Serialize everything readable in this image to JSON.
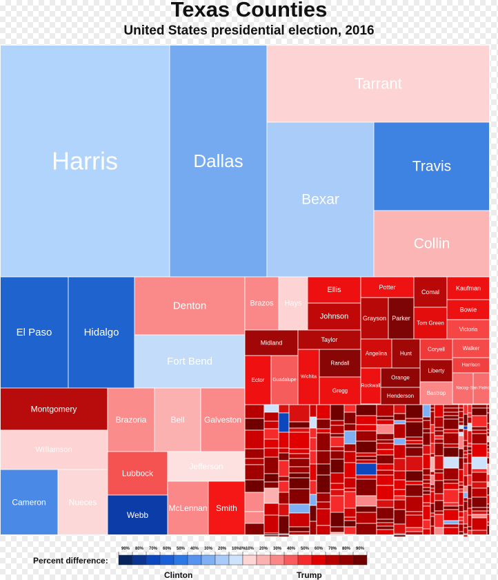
{
  "chart_data": {
    "type": "treemap",
    "title": "Texas Counties",
    "subtitle": "United States presidential election, 2016",
    "legend": {
      "label": "Percent difference:",
      "left_name": "Clinton",
      "right_name": "Trump",
      "ticks_left": [
        "90%",
        "80%",
        "70%",
        "60%",
        "50%",
        "40%",
        "30%",
        "20%",
        "10%"
      ],
      "center_tick": "0%",
      "ticks_right": [
        "10%",
        "20%",
        "30%",
        "40%",
        "50%",
        "60%",
        "70%",
        "80%",
        "90%"
      ],
      "colors_left": [
        "#08245e",
        "#0b3590",
        "#0d47bd",
        "#1a5fd6",
        "#2e78e6",
        "#5593ee",
        "#7fb0f4",
        "#a9cbf8",
        "#cfe2fc"
      ],
      "colors_right": [
        "#fdd5d5",
        "#fcb1b1",
        "#fa8888",
        "#f85c5c",
        "#f52a2a",
        "#e00000",
        "#b70000",
        "#920000",
        "#700000"
      ]
    },
    "counties": [
      {
        "name": "Harris",
        "winner": "Clinton",
        "margin": 12,
        "color": "#b0d4fb"
      },
      {
        "name": "Dallas",
        "winner": "Clinton",
        "margin": 34,
        "color": "#76aaf0"
      },
      {
        "name": "Tarrant",
        "winner": "Trump",
        "margin": 9,
        "color": "#fdd3d3"
      },
      {
        "name": "Bexar",
        "winner": "Clinton",
        "margin": 13,
        "color": "#a9ccf8"
      },
      {
        "name": "Travis",
        "winner": "Clinton",
        "margin": 39,
        "color": "#3e82e2"
      },
      {
        "name": "Collin",
        "winner": "Trump",
        "margin": 17,
        "color": "#fcb5b5"
      },
      {
        "name": "El Paso",
        "winner": "Clinton",
        "margin": 43,
        "color": "#1f63cf"
      },
      {
        "name": "Hidalgo",
        "winner": "Clinton",
        "margin": 41,
        "color": "#1f63cf"
      },
      {
        "name": "Denton",
        "winner": "Trump",
        "margin": 26,
        "color": "#fa8a8a"
      },
      {
        "name": "Fort Bend",
        "winner": "Clinton",
        "margin": 7,
        "color": "#c2dcfa"
      },
      {
        "name": "Montgomery",
        "winner": "Trump",
        "margin": 51,
        "color": "#b80b0b"
      },
      {
        "name": "Williamson",
        "winner": "Trump",
        "margin": 10,
        "color": "#fdd3d3"
      },
      {
        "name": "Cameron",
        "winner": "Clinton",
        "margin": 32,
        "color": "#4a8ae6"
      },
      {
        "name": "Nueces",
        "winner": "Trump",
        "margin": 7,
        "color": "#fdd8d8"
      },
      {
        "name": "Brazoria",
        "winner": "Trump",
        "margin": 24,
        "color": "#fa8c8c"
      },
      {
        "name": "Bell",
        "winner": "Trump",
        "margin": 17,
        "color": "#fcb1b1"
      },
      {
        "name": "Galveston",
        "winner": "Trump",
        "margin": 26,
        "color": "#fa8a8a"
      },
      {
        "name": "Lubbock",
        "winner": "Trump",
        "margin": 36,
        "color": "#f55252"
      },
      {
        "name": "Jefferson",
        "winner": "Trump",
        "margin": 2,
        "color": "#fde0e0"
      },
      {
        "name": "Webb",
        "winner": "Clinton",
        "margin": 52,
        "color": "#0b3ca8"
      },
      {
        "name": "McLennan",
        "winner": "Trump",
        "margin": 26,
        "color": "#fa8888"
      },
      {
        "name": "Smith",
        "winner": "Trump",
        "margin": 44,
        "color": "#f51616"
      },
      {
        "name": "Brazos",
        "winner": "Trump",
        "margin": 28,
        "color": "#fa8888"
      },
      {
        "name": "Hays",
        "winner": "Trump",
        "margin": 7,
        "color": "#fdd3d3"
      },
      {
        "name": "Ellis",
        "winner": "Trump",
        "margin": 43,
        "color": "#ee1010"
      },
      {
        "name": "Johnson",
        "winner": "Trump",
        "margin": 58,
        "color": "#c00808"
      },
      {
        "name": "Potter",
        "winner": "Trump",
        "margin": 47,
        "color": "#ef1212"
      },
      {
        "name": "Comal",
        "winner": "Trump",
        "margin": 51,
        "color": "#b90808"
      },
      {
        "name": "Kaufman",
        "winner": "Trump",
        "margin": 45,
        "color": "#ee1111"
      },
      {
        "name": "Grayson",
        "winner": "Trump",
        "margin": 53,
        "color": "#b90808"
      },
      {
        "name": "Parker",
        "winner": "Trump",
        "margin": 67,
        "color": "#7e0505"
      },
      {
        "name": "Tom Green",
        "winner": "Trump",
        "margin": 49,
        "color": "#e30d0d"
      },
      {
        "name": "Bowie",
        "winner": "Trump",
        "margin": 46,
        "color": "#ee1111"
      },
      {
        "name": "Victoria",
        "winner": "Trump",
        "margin": 40,
        "color": "#f54545"
      },
      {
        "name": "Midland",
        "winner": "Trump",
        "margin": 61,
        "color": "#a10707"
      },
      {
        "name": "Taylor",
        "winner": "Trump",
        "margin": 56,
        "color": "#b10808"
      },
      {
        "name": "Angelina",
        "winner": "Trump",
        "margin": 48,
        "color": "#d20b0b"
      },
      {
        "name": "Hunt",
        "winner": "Trump",
        "margin": 61,
        "color": "#a00707"
      },
      {
        "name": "Coryell",
        "winner": "Trump",
        "margin": 43,
        "color": "#f03a3a"
      },
      {
        "name": "Walker",
        "winner": "Trump",
        "margin": 38,
        "color": "#f54a4a"
      },
      {
        "name": "Ector",
        "winner": "Trump",
        "margin": 44,
        "color": "#ef1111"
      },
      {
        "name": "Guadalupe",
        "winner": "Trump",
        "margin": 29,
        "color": "#f75c5c"
      },
      {
        "name": "Wichita",
        "winner": "Trump",
        "margin": 46,
        "color": "#ee1111"
      },
      {
        "name": "Randall",
        "winner": "Trump",
        "margin": 70,
        "color": "#880606"
      },
      {
        "name": "Liberty",
        "winner": "Trump",
        "margin": 64,
        "color": "#a00707"
      },
      {
        "name": "Harrison",
        "winner": "Trump",
        "margin": 43,
        "color": "#f04040"
      },
      {
        "name": "Orange",
        "winner": "Trump",
        "margin": 60,
        "color": "#900606"
      },
      {
        "name": "Nacogdoches",
        "winner": "Trump",
        "margin": 33,
        "color": "#f86e6e"
      },
      {
        "name": "San Patricio",
        "winner": "Trump",
        "margin": 31,
        "color": "#f86e6e"
      },
      {
        "name": "Gregg",
        "winner": "Trump",
        "margin": 40,
        "color": "#ee1111"
      },
      {
        "name": "Rockwall",
        "winner": "Trump",
        "margin": 46,
        "color": "#ee1111"
      },
      {
        "name": "Henderson",
        "winner": "Trump",
        "margin": 62,
        "color": "#9a0707"
      },
      {
        "name": "Bastrop",
        "winner": "Trump",
        "margin": 26,
        "color": "#fa8888"
      }
    ]
  }
}
